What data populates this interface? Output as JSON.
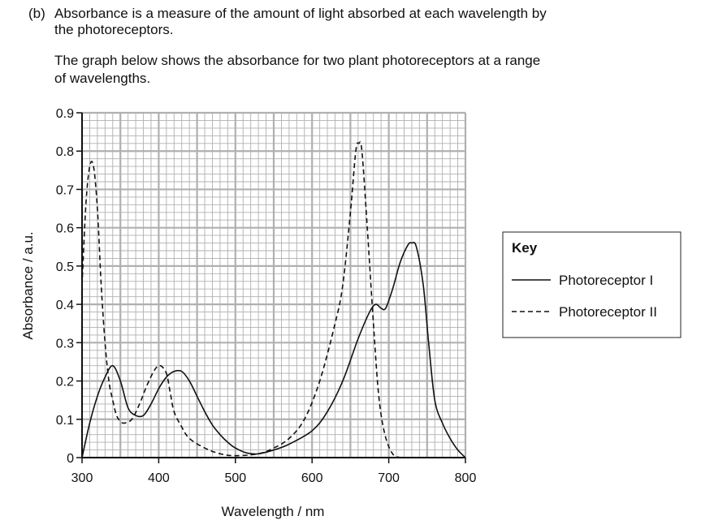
{
  "question": {
    "label": "(b)",
    "line1": "Absorbance is a measure of the amount of light absorbed at each wavelength by",
    "line2": "the photoreceptors.",
    "line3": "The graph below shows the absorbance for two plant photoreceptors at a range",
    "line4": "of wavelengths."
  },
  "chart_data": {
    "type": "line",
    "title": "",
    "xlabel": "Wavelength / nm",
    "ylabel": "Absorbance / a.u.",
    "xlim": [
      300,
      800
    ],
    "ylim": [
      0,
      0.9
    ],
    "xticks": [
      "300",
      "400",
      "500",
      "600",
      "700",
      "800"
    ],
    "yticks": [
      "0",
      "0.1",
      "0.2",
      "0.3",
      "0.4",
      "0.5",
      "0.6",
      "0.7",
      "0.8",
      "0.9"
    ],
    "grid": true,
    "legend": {
      "title": "Key",
      "placement": "right"
    },
    "series": [
      {
        "name": "Photoreceptor I",
        "style": "solid",
        "x": [
          300,
          310,
          320,
          330,
          340,
          350,
          360,
          370,
          380,
          390,
          400,
          410,
          420,
          430,
          440,
          450,
          460,
          470,
          480,
          490,
          500,
          515,
          530,
          550,
          570,
          600,
          620,
          640,
          660,
          675,
          683,
          690,
          696,
          705,
          715,
          725,
          730,
          736,
          745,
          752,
          760,
          770,
          780,
          790,
          800
        ],
        "y": [
          0,
          0.09,
          0.16,
          0.21,
          0.24,
          0.2,
          0.13,
          0.11,
          0.11,
          0.14,
          0.18,
          0.21,
          0.225,
          0.225,
          0.2,
          0.16,
          0.12,
          0.085,
          0.06,
          0.04,
          0.025,
          0.012,
          0.01,
          0.02,
          0.035,
          0.07,
          0.12,
          0.2,
          0.31,
          0.38,
          0.4,
          0.39,
          0.39,
          0.44,
          0.51,
          0.555,
          0.56,
          0.55,
          0.45,
          0.3,
          0.15,
          0.09,
          0.05,
          0.02,
          0
        ]
      },
      {
        "name": "Photoreceptor II",
        "style": "dashed",
        "x": [
          300,
          305,
          310,
          315,
          320,
          325,
          330,
          335,
          340,
          345,
          350,
          355,
          365,
          375,
          385,
          395,
          402,
          410,
          415,
          420,
          430,
          440,
          460,
          480,
          500,
          530,
          550,
          570,
          590,
          610,
          630,
          640,
          650,
          657,
          661,
          665,
          672,
          680,
          687,
          695,
          705,
          715
        ],
        "y": [
          0.45,
          0.66,
          0.76,
          0.76,
          0.65,
          0.45,
          0.3,
          0.2,
          0.15,
          0.11,
          0.095,
          0.09,
          0.1,
          0.14,
          0.19,
          0.23,
          0.24,
          0.22,
          0.17,
          0.12,
          0.08,
          0.05,
          0.025,
          0.01,
          0.005,
          0.01,
          0.025,
          0.05,
          0.1,
          0.2,
          0.35,
          0.45,
          0.64,
          0.8,
          0.82,
          0.8,
          0.6,
          0.35,
          0.16,
          0.06,
          0.01,
          0
        ]
      }
    ]
  }
}
